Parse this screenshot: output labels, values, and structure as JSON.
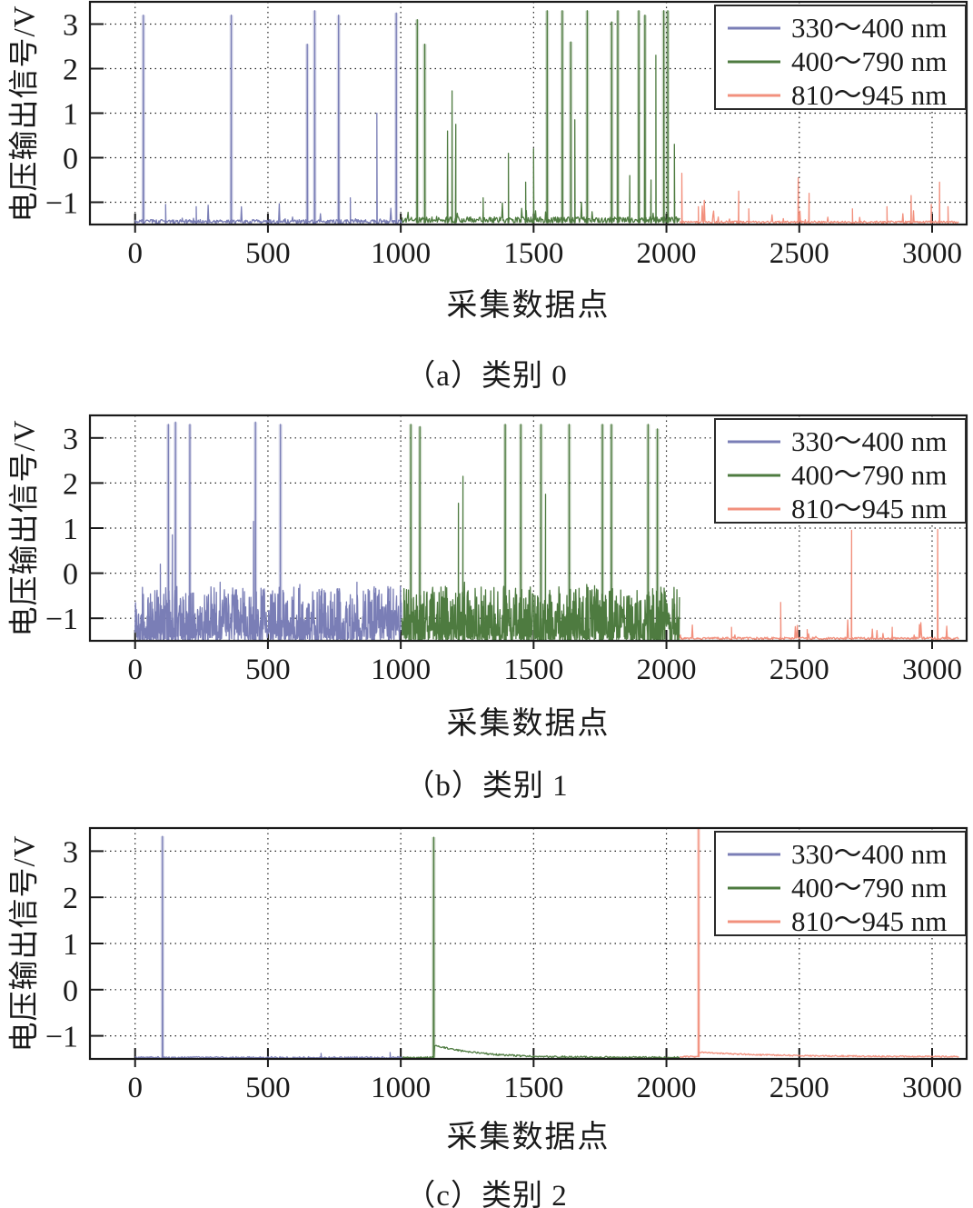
{
  "chart_data": [
    {
      "type": "line",
      "caption": "（a）类别 0",
      "title": "类别 0",
      "xlabel": "采集数据点",
      "ylabel": "电压输出信号/V",
      "xlim": [
        -170,
        3130
      ],
      "ylim": [
        -1.5,
        3.5
      ],
      "x_ticks": [
        0,
        500,
        1000,
        1500,
        2000,
        2500,
        3000
      ],
      "y_ticks": [
        3,
        2,
        1,
        0,
        -1
      ],
      "grid": true,
      "legend": {
        "position": "top-right",
        "entries": [
          {
            "label": "330～400 nm",
            "color": "#7a7eb6"
          },
          {
            "label": "400～790 nm",
            "color": "#4e7b40"
          },
          {
            "label": "810～945 nm",
            "color": "#f2907d"
          }
        ]
      },
      "series": [
        {
          "name": "330～400 nm",
          "color": "#7a7eb6",
          "x_start": 0,
          "x_end": 1005,
          "baseline": -1.48,
          "noise": "calm",
          "noise_amp": 0.09,
          "spikes": [
            [
              31,
              3.2
            ],
            [
              115,
              -1.05
            ],
            [
              230,
              -1.1
            ],
            [
              362,
              3.2
            ],
            [
              648,
              2.55
            ],
            [
              676,
              3.3
            ],
            [
              766,
              3.2
            ],
            [
              810,
              -0.9
            ],
            [
              910,
              1.0
            ],
            [
              983,
              3.25
            ]
          ]
        },
        {
          "name": "400～790 nm",
          "color": "#4e7b40",
          "x_start": 1005,
          "x_end": 2050,
          "baseline": -1.46,
          "noise": "calm",
          "noise_amp": 0.13,
          "spikes": [
            [
              1062,
              3.1
            ],
            [
              1090,
              2.55
            ],
            [
              1176,
              0.6
            ],
            [
              1193,
              1.5
            ],
            [
              1207,
              0.75
            ],
            [
              1310,
              -0.9
            ],
            [
              1405,
              0.1
            ],
            [
              1470,
              -0.55
            ],
            [
              1500,
              0.2
            ],
            [
              1551,
              3.3
            ],
            [
              1608,
              3.3
            ],
            [
              1640,
              2.6
            ],
            [
              1655,
              0.85
            ],
            [
              1702,
              3.3
            ],
            [
              1794,
              3.05
            ],
            [
              1817,
              3.3
            ],
            [
              1862,
              -0.4
            ],
            [
              1896,
              3.3
            ],
            [
              1919,
              3.2
            ],
            [
              1942,
              -0.5
            ],
            [
              1960,
              2.3
            ],
            [
              1990,
              3.3
            ],
            [
              2005,
              3.3
            ],
            [
              2030,
              0.3
            ]
          ]
        },
        {
          "name": "810～945 nm",
          "color": "#f2907d",
          "x_start": 2050,
          "x_end": 3100,
          "baseline": -1.47,
          "noise": "calm",
          "noise_amp": 0.05,
          "spikes": [
            [
              2058,
              -0.35
            ],
            [
              2120,
              -1.1
            ],
            [
              2272,
              -0.75
            ],
            [
              2310,
              -1.15
            ],
            [
              2496,
              -0.45
            ],
            [
              2537,
              -0.8
            ],
            [
              2700,
              -1.15
            ],
            [
              2830,
              -1.1
            ],
            [
              2921,
              -0.85
            ],
            [
              2997,
              -1.05
            ],
            [
              3028,
              -0.55
            ],
            [
              3060,
              -1.1
            ]
          ]
        }
      ]
    },
    {
      "type": "line",
      "caption": "（b）类别 1",
      "title": "类别 1",
      "xlabel": "采集数据点",
      "ylabel": "电压输出信号/V",
      "xlim": [
        -170,
        3130
      ],
      "ylim": [
        -1.5,
        3.5
      ],
      "x_ticks": [
        0,
        500,
        1000,
        1500,
        2000,
        2500,
        3000
      ],
      "y_ticks": [
        3,
        2,
        1,
        0,
        -1
      ],
      "grid": true,
      "legend": {
        "position": "top-right",
        "entries": [
          {
            "label": "330～400 nm",
            "color": "#7a7eb6"
          },
          {
            "label": "400～790 nm",
            "color": "#4e7b40"
          },
          {
            "label": "810～945 nm",
            "color": "#f2907d"
          }
        ]
      },
      "series": [
        {
          "name": "330～400 nm",
          "color": "#7a7eb6",
          "x_start": 0,
          "x_end": 1005,
          "baseline": -1.52,
          "noise": "heavy",
          "noise_amp": 1.2,
          "spikes": [
            [
              95,
              0.2
            ],
            [
              125,
              3.3
            ],
            [
              140,
              0.85
            ],
            [
              152,
              3.35
            ],
            [
              206,
              3.3
            ],
            [
              320,
              -0.2
            ],
            [
              446,
              1.15
            ],
            [
              453,
              3.35
            ],
            [
              547,
              3.3
            ],
            [
              620,
              -0.25
            ],
            [
              700,
              -0.4
            ],
            [
              760,
              -0.35
            ],
            [
              835,
              -0.2
            ],
            [
              900,
              -0.3
            ],
            [
              955,
              -0.35
            ]
          ]
        },
        {
          "name": "400～790 nm",
          "color": "#4e7b40",
          "x_start": 1005,
          "x_end": 2050,
          "baseline": -1.52,
          "noise": "heavy",
          "noise_amp": 1.2,
          "spikes": [
            [
              1038,
              3.3
            ],
            [
              1072,
              3.25
            ],
            [
              1217,
              1.55
            ],
            [
              1234,
              2.15
            ],
            [
              1240,
              -0.2
            ],
            [
              1393,
              3.3
            ],
            [
              1452,
              3.3
            ],
            [
              1528,
              3.3
            ],
            [
              1545,
              1.75
            ],
            [
              1634,
              3.3
            ],
            [
              1700,
              -0.25
            ],
            [
              1759,
              3.3
            ],
            [
              1793,
              3.3
            ],
            [
              1931,
              3.3
            ],
            [
              1966,
              3.2
            ]
          ]
        },
        {
          "name": "810～945 nm",
          "color": "#f2907d",
          "x_start": 2050,
          "x_end": 3100,
          "baseline": -1.47,
          "noise": "calm",
          "noise_amp": 0.05,
          "spikes": [
            [
              2245,
              -1.2
            ],
            [
              2430,
              -0.65
            ],
            [
              2530,
              -1.25
            ],
            [
              2697,
              0.95
            ],
            [
              2850,
              -1.25
            ],
            [
              3021,
              0.97
            ]
          ]
        }
      ]
    },
    {
      "type": "line",
      "caption": "（c）类别 2",
      "title": "类别 2",
      "xlabel": "采集数据点",
      "ylabel": "电压输出信号/V",
      "xlim": [
        -170,
        3130
      ],
      "ylim": [
        -1.5,
        3.5
      ],
      "x_ticks": [
        0,
        500,
        1000,
        1500,
        2000,
        2500,
        3000
      ],
      "y_ticks": [
        3,
        2,
        1,
        0,
        -1
      ],
      "grid": true,
      "legend": {
        "position": "top-right",
        "entries": [
          {
            "label": "330～400 nm",
            "color": "#7a7eb6"
          },
          {
            "label": "400～790 nm",
            "color": "#4e7b40"
          },
          {
            "label": "810～945 nm",
            "color": "#f2907d"
          }
        ]
      },
      "series": [
        {
          "name": "330～400 nm",
          "color": "#7a7eb6",
          "x_start": 0,
          "x_end": 1005,
          "baseline": -1.47,
          "noise": "flat",
          "noise_amp": 0.04,
          "spikes": [
            [
              103,
              3.32
            ],
            [
              700,
              -1.38
            ],
            [
              960,
              -1.36
            ]
          ]
        },
        {
          "name": "400～790 nm",
          "color": "#4e7b40",
          "x_start": 1005,
          "x_end": 2050,
          "baseline": -1.47,
          "noise": "flat",
          "noise_amp": 0.04,
          "decay": {
            "x": 1124,
            "amp": 0.28,
            "tau": 160
          },
          "spikes": [
            [
              1124,
              3.3
            ]
          ]
        },
        {
          "name": "810～945 nm",
          "color": "#f2907d",
          "x_start": 2050,
          "x_end": 3100,
          "baseline": -1.45,
          "noise": "flat",
          "noise_amp": 0.03,
          "decay": {
            "x": 2121,
            "amp": 0.1,
            "tau": 250
          },
          "spikes": [
            [
              2121,
              3.5
            ]
          ]
        }
      ]
    }
  ]
}
